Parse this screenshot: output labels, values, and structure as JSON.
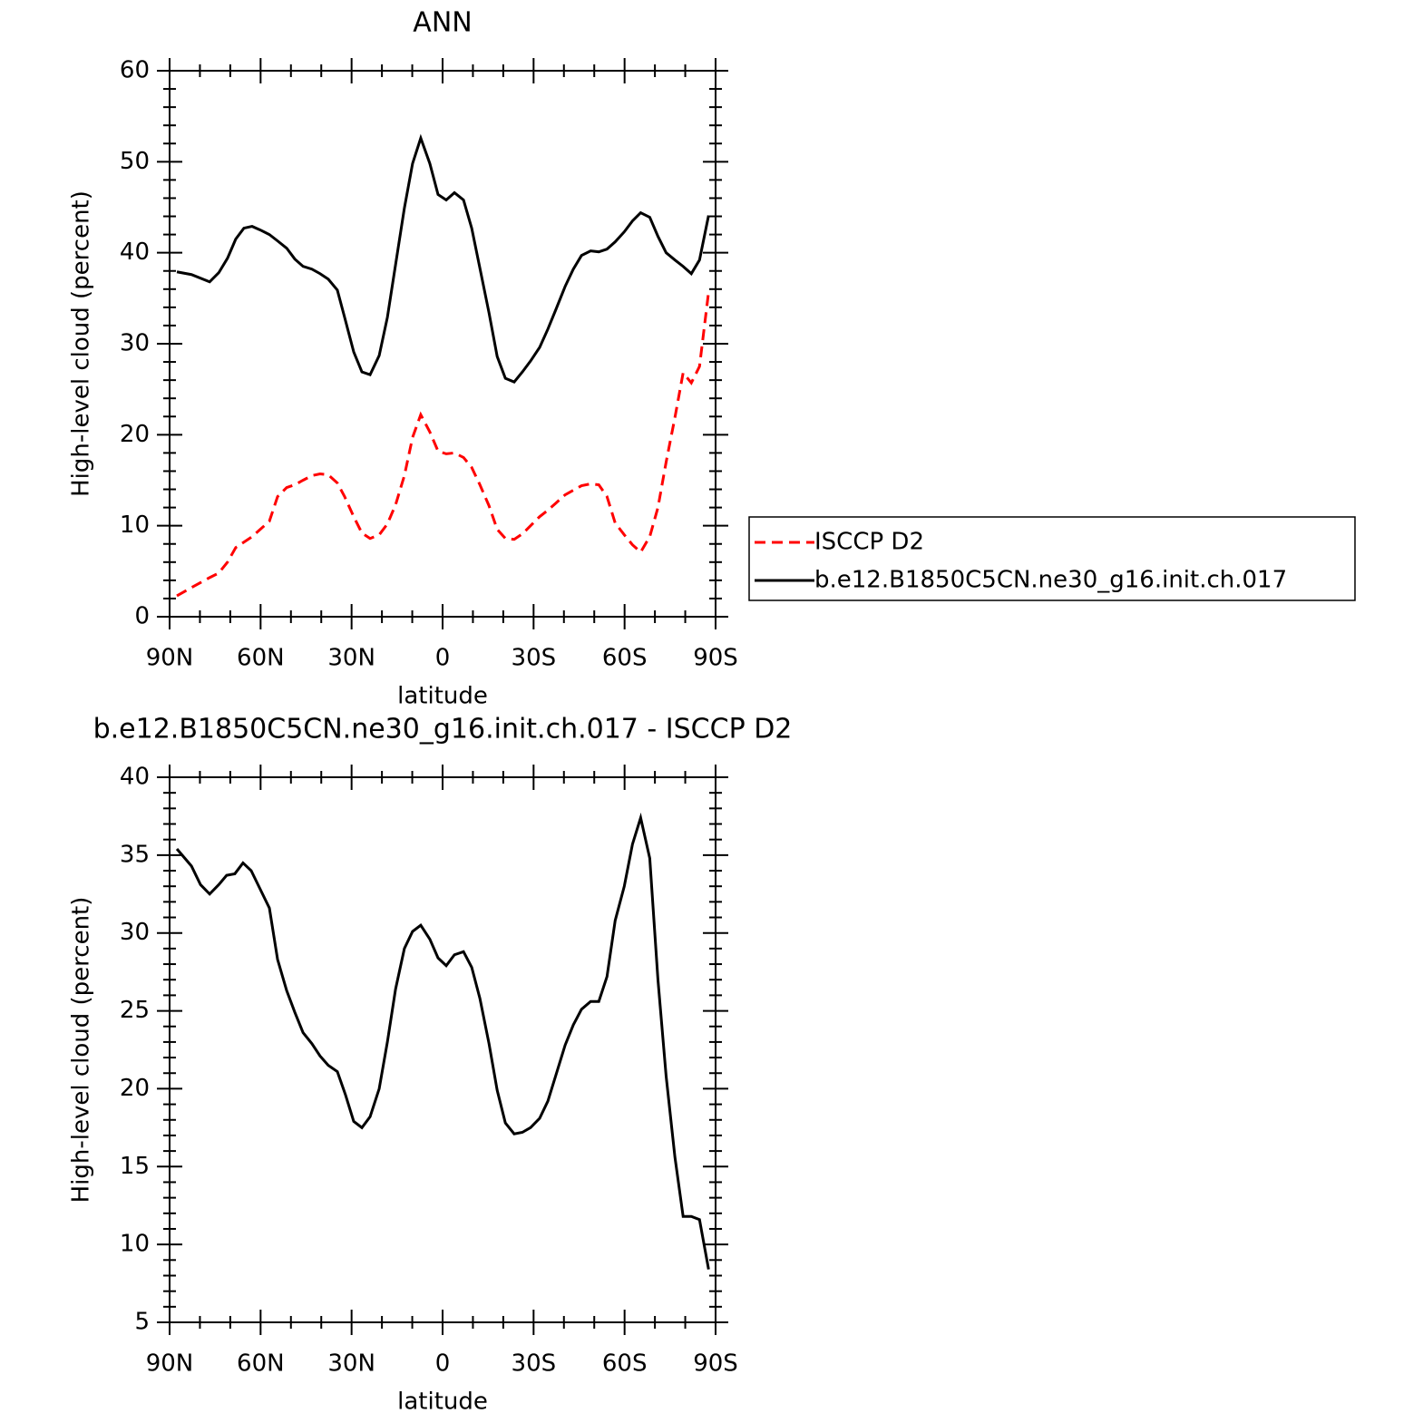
{
  "chart_data": [
    {
      "type": "line",
      "title": "ANN",
      "xlabel": "latitude",
      "ylabel": "High-level cloud (percent)",
      "x": [
        87.6,
        82.8,
        76.8,
        73.8,
        70.9,
        68.2,
        65.5,
        62.8,
        60.1,
        57.1,
        54.4,
        51.4,
        48.7,
        46.0,
        43.1,
        40.4,
        37.7,
        34.7,
        32.3,
        29.3,
        26.6,
        23.9,
        20.9,
        18.2,
        15.5,
        12.6,
        9.9,
        7.2,
        4.2,
        1.5,
        -1.2,
        -3.9,
        -6.9,
        -9.6,
        -12.3,
        -15.3,
        -18.0,
        -20.7,
        -23.6,
        -26.3,
        -29.0,
        -32.0,
        -34.7,
        -37.4,
        -40.4,
        -43.1,
        -45.8,
        -48.8,
        -51.5,
        -54.2,
        -56.9,
        -59.9,
        -62.6,
        -65.3,
        -68.3,
        -71.0,
        -73.7,
        -76.6,
        -79.3,
        -82.0,
        -84.7,
        -87.7
      ],
      "series": [
        {
          "name": "ISCCP D2",
          "color": "#ff0000",
          "linestyle": "dashed",
          "values": [
            2.3,
            3.2,
            4.3,
            4.8,
            6.0,
            7.6,
            8.2,
            8.8,
            9.6,
            10.5,
            13.2,
            14.2,
            14.5,
            15.0,
            15.5,
            15.7,
            15.6,
            14.7,
            13.2,
            11.0,
            9.2,
            8.6,
            9.0,
            10.2,
            12.3,
            15.5,
            19.7,
            22.2,
            20.3,
            18.2,
            17.9,
            18.0,
            17.5,
            16.4,
            14.5,
            12.2,
            9.6,
            8.6,
            8.5,
            9.1,
            10.0,
            11.0,
            11.7,
            12.5,
            13.4,
            13.9,
            14.4,
            14.6,
            14.5,
            13.2,
            10.3,
            9.0,
            7.9,
            7.1,
            8.8,
            12.0,
            17.0,
            21.9,
            26.8,
            25.7,
            27.5,
            35.7
          ]
        },
        {
          "name": "b.e12.B1850C5CN.ne30_g16.init.ch.017",
          "color": "#000000",
          "linestyle": "solid",
          "values": [
            37.9,
            37.6,
            36.8,
            37.8,
            39.4,
            41.5,
            42.7,
            42.9,
            42.5,
            42.0,
            41.3,
            40.5,
            39.3,
            38.5,
            38.2,
            37.7,
            37.1,
            35.9,
            32.9,
            29.1,
            26.9,
            26.6,
            28.7,
            32.9,
            38.7,
            44.9,
            49.8,
            52.6,
            49.8,
            46.4,
            45.8,
            46.6,
            45.8,
            42.7,
            38.3,
            33.4,
            28.6,
            26.2,
            25.8,
            26.9,
            28.1,
            29.6,
            31.6,
            33.8,
            36.3,
            38.2,
            39.7,
            40.2,
            40.1,
            40.4,
            41.2,
            42.3,
            43.5,
            44.4,
            43.9,
            41.8,
            40.0,
            39.2,
            38.5,
            37.7,
            39.2,
            44.1
          ]
        }
      ],
      "xlim": [
        90,
        -90
      ],
      "ylim": [
        0,
        60
      ],
      "xticks": [
        {
          "value": 90,
          "label": "90N"
        },
        {
          "value": 60,
          "label": "60N"
        },
        {
          "value": 30,
          "label": "30N"
        },
        0,
        {
          "value": -30,
          "label": "30S"
        },
        {
          "value": -60,
          "label": "60S"
        },
        {
          "value": -90,
          "label": "90S"
        }
      ],
      "yticks": [
        0,
        10,
        20,
        30,
        40,
        50,
        60
      ],
      "legend": "outside-right"
    },
    {
      "type": "line",
      "title": "b.e12.B1850C5CN.ne30_g16.init.ch.017 - ISCCP D2",
      "xlabel": "latitude",
      "ylabel": "High-level cloud (percent)",
      "x": [
        87.6,
        82.8,
        79.8,
        76.8,
        73.8,
        71.2,
        68.5,
        65.8,
        63.1,
        60.1,
        57.1,
        54.4,
        51.4,
        48.7,
        46.0,
        43.1,
        40.4,
        37.7,
        34.7,
        32.0,
        29.3,
        26.6,
        23.9,
        20.9,
        18.2,
        15.5,
        12.6,
        9.9,
        7.2,
        4.2,
        1.5,
        -1.2,
        -3.9,
        -6.9,
        -9.6,
        -12.3,
        -15.3,
        -18.0,
        -20.7,
        -23.6,
        -26.3,
        -29.0,
        -32.0,
        -34.7,
        -37.4,
        -40.4,
        -43.1,
        -45.8,
        -48.8,
        -51.5,
        -54.2,
        -56.9,
        -59.9,
        -62.6,
        -65.3,
        -68.3,
        -71.0,
        -73.7,
        -76.6,
        -79.3,
        -82.0,
        -84.7,
        -87.7
      ],
      "series": [
        {
          "color": "#000000",
          "linestyle": "solid",
          "values": [
            35.4,
            34.3,
            33.1,
            32.5,
            33.1,
            33.7,
            33.8,
            34.5,
            34.0,
            32.8,
            31.6,
            28.3,
            26.3,
            24.9,
            23.6,
            22.9,
            22.1,
            21.5,
            21.1,
            19.6,
            17.9,
            17.5,
            18.2,
            20.0,
            23.0,
            26.4,
            29.0,
            30.1,
            30.5,
            29.6,
            28.4,
            27.9,
            28.6,
            28.8,
            27.8,
            25.8,
            22.9,
            19.9,
            17.8,
            17.1,
            17.2,
            17.5,
            18.1,
            19.2,
            20.9,
            22.8,
            24.1,
            25.1,
            25.6,
            25.6,
            27.2,
            30.8,
            33.0,
            35.7,
            37.4,
            34.8,
            27.0,
            20.8,
            15.6,
            11.8,
            11.8,
            11.6,
            8.4
          ]
        }
      ],
      "xlim": [
        90,
        -90
      ],
      "ylim": [
        5,
        40
      ],
      "xticks": [
        {
          "value": 90,
          "label": "90N"
        },
        {
          "value": 60,
          "label": "60N"
        },
        {
          "value": 30,
          "label": "30N"
        },
        0,
        {
          "value": -30,
          "label": "30S"
        },
        {
          "value": -60,
          "label": "60S"
        },
        {
          "value": -90,
          "label": "90S"
        }
      ],
      "yticks": [
        5,
        10,
        15,
        20,
        25,
        30,
        35,
        40
      ]
    }
  ]
}
